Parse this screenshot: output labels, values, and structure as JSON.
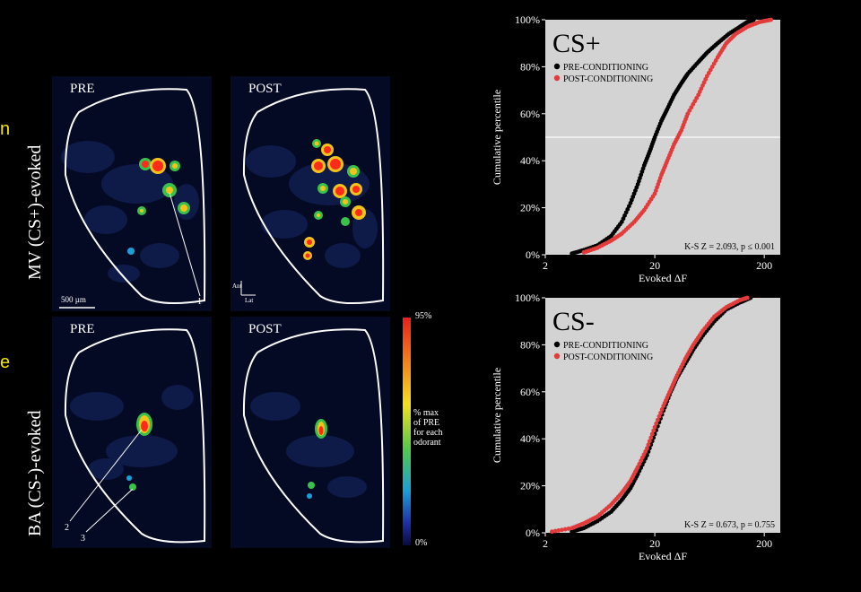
{
  "edge_fragments": {
    "top": "n",
    "bottom": "e"
  },
  "images": {
    "rows": [
      {
        "label": "MV (CS+)-evoked",
        "panels": [
          "PRE",
          "POST"
        ],
        "callouts": [
          "1"
        ],
        "scale_bar": "500 µm",
        "axis_labels": [
          "Lat",
          "Ant"
        ]
      },
      {
        "label": "BA (CS-)-evoked",
        "panels": [
          "PRE",
          "POST"
        ],
        "callouts": [
          "2",
          "3"
        ]
      }
    ],
    "colorbar": {
      "max": "95%",
      "min": "0%",
      "label_lines": [
        "% max",
        "of PRE",
        "for each",
        "odorant"
      ]
    }
  },
  "chart_data": [
    {
      "type": "scatter",
      "title": "CS+",
      "xlabel": "Evoked ΔF",
      "ylabel": "Cumulative percentile",
      "xscale": "log",
      "xlim": [
        2,
        280
      ],
      "ylim": [
        0,
        100
      ],
      "xticks": [
        "2",
        "20",
        "200"
      ],
      "yticks": [
        "0%",
        "20%",
        "40%",
        "60%",
        "80%",
        "100%"
      ],
      "reference_line_y": 50,
      "legend_position": "top-left",
      "series": [
        {
          "name": "PRE-CONDITIONING",
          "color": "#000000",
          "x": [
            3.5,
            4.5,
            6,
            8,
            10,
            12,
            14,
            16,
            18,
            20,
            23,
            26,
            30,
            35,
            40,
            50,
            60,
            75,
            95,
            120,
            140,
            160
          ],
          "y": [
            0.5,
            2,
            4,
            8,
            14,
            22,
            30,
            38,
            44,
            50,
            57,
            62,
            68,
            73,
            77,
            82,
            86,
            90,
            94,
            97,
            99,
            100
          ]
        },
        {
          "name": "POST-CONDITIONING",
          "color": "#e33b3b",
          "x": [
            4.5,
            6,
            8,
            10,
            13,
            16,
            20,
            23,
            26,
            30,
            35,
            40,
            50,
            60,
            75,
            90,
            110,
            140,
            180,
            230
          ],
          "y": [
            1,
            3,
            6,
            9,
            14,
            19,
            26,
            34,
            40,
            47,
            53,
            60,
            68,
            76,
            84,
            90,
            94,
            97,
            99,
            100
          ]
        }
      ],
      "annotation": "K-S Z = 2.093, p ≤ 0.001"
    },
    {
      "type": "scatter",
      "title": "CS-",
      "xlabel": "Evoked ΔF",
      "ylabel": "Cumulative percentile",
      "xscale": "log",
      "xlim": [
        2,
        280
      ],
      "ylim": [
        0,
        100
      ],
      "xticks": [
        "2",
        "20",
        "200"
      ],
      "yticks": [
        "0%",
        "20%",
        "40%",
        "60%",
        "80%",
        "100%"
      ],
      "legend_position": "top-left",
      "series": [
        {
          "name": "PRE-CONDITIONING",
          "color": "#000000",
          "x": [
            3.5,
            4.5,
            6,
            8,
            10,
            12,
            14,
            17,
            20,
            24,
            28,
            32,
            38,
            45,
            55,
            70,
            90,
            120,
            150
          ],
          "y": [
            0.5,
            2,
            5,
            9,
            14,
            19,
            25,
            33,
            42,
            52,
            60,
            66,
            72,
            78,
            84,
            90,
            95,
            98,
            100
          ]
        },
        {
          "name": "POST-CONDITIONING",
          "color": "#e33b3b",
          "x": [
            2.3,
            3.5,
            4.5,
            6,
            8,
            10,
            12,
            14,
            17,
            20,
            24,
            28,
            32,
            38,
            45,
            55,
            70,
            90,
            120,
            140
          ],
          "y": [
            0.5,
            2,
            4,
            7,
            12,
            17,
            22,
            28,
            36,
            45,
            54,
            61,
            67,
            74,
            80,
            86,
            92,
            96,
            99,
            100
          ]
        }
      ],
      "annotation": "K-S Z = 0.673, p = 0.755"
    }
  ]
}
